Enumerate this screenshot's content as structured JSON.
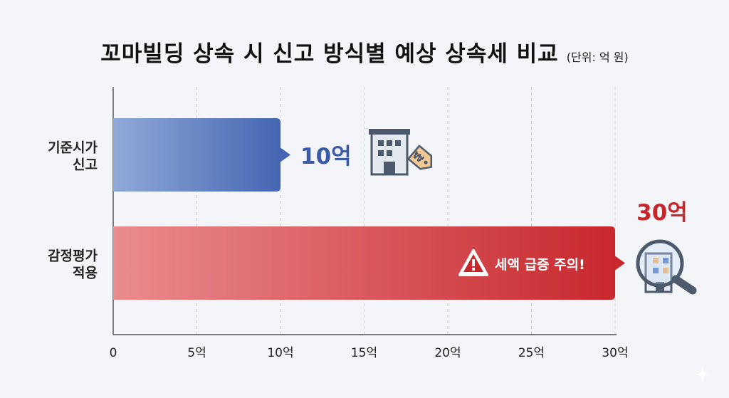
{
  "title": "꼬마빌딩 상속 시 신고 방식별 예상 상속세 비교",
  "unit_note": "(단위: 억 원)",
  "chart_data": {
    "type": "bar",
    "orientation": "horizontal",
    "categories": [
      [
        "기준시가",
        "신고"
      ],
      [
        "감정평가",
        "적용"
      ]
    ],
    "values": [
      10,
      30
    ],
    "value_labels": [
      "10억",
      "30억"
    ],
    "x_ticks": [
      0,
      5,
      10,
      15,
      20,
      25,
      30
    ],
    "x_tick_labels": [
      "0",
      "5억",
      "10억",
      "15억",
      "20억",
      "25억",
      "30억"
    ],
    "xlim": [
      0,
      30
    ],
    "grid": "vertical-dashed",
    "colors": [
      "#4a6fb8",
      "#cc2f33"
    ],
    "annotation": "세액 급증 주의!"
  },
  "icons": [
    "building-price-tag-icon",
    "warning-icon",
    "building-magnifier-icon",
    "sparkle-icon"
  ]
}
